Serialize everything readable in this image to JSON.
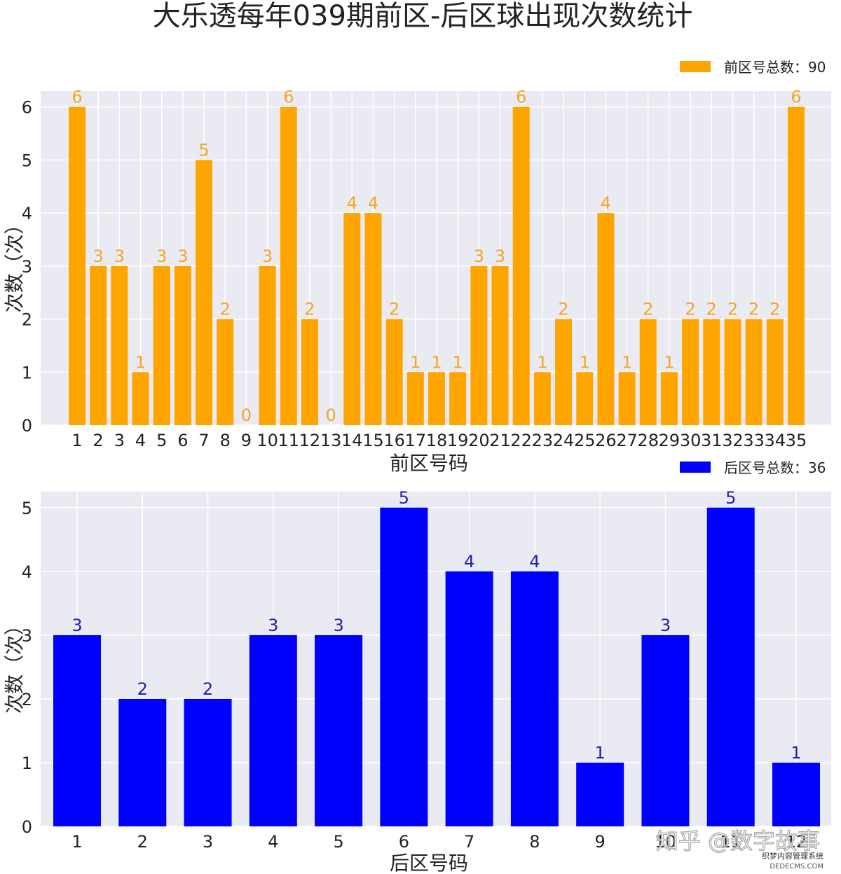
{
  "title": "大乐透每年039期前区-后区球出现次数统计",
  "watermark": {
    "zhihu_text": "知乎 @数字故事",
    "site_text": "织梦内容管理系统",
    "site_url": "DEDECMS.COM"
  },
  "chart_data": [
    {
      "type": "bar",
      "xlabel": "前区号码",
      "ylabel": "次数（次）",
      "legend_label": "前区号总数：90",
      "legend_position": "top-right",
      "color": "#FFA500",
      "label_color": "#F5A623",
      "grid": true,
      "ylim": [
        0,
        6.3
      ],
      "yticks": [
        "0",
        "1",
        "2",
        "3",
        "4",
        "5",
        "6"
      ],
      "categories": [
        "1",
        "2",
        "3",
        "4",
        "5",
        "6",
        "7",
        "8",
        "9",
        "10",
        "11",
        "12",
        "13",
        "14",
        "15",
        "16",
        "17",
        "18",
        "19",
        "20",
        "21",
        "22",
        "23",
        "24",
        "25",
        "26",
        "27",
        "28",
        "29",
        "30",
        "31",
        "32",
        "33",
        "34",
        "35"
      ],
      "values": [
        6,
        3,
        3,
        1,
        3,
        3,
        5,
        2,
        0,
        3,
        6,
        2,
        0,
        4,
        4,
        2,
        1,
        1,
        1,
        3,
        3,
        6,
        1,
        2,
        1,
        4,
        1,
        2,
        1,
        2,
        2,
        2,
        2,
        2,
        6
      ]
    },
    {
      "type": "bar",
      "xlabel": "后区号码",
      "ylabel": "次数（次）",
      "legend_label": "后区号总数：36",
      "legend_position": "top-right",
      "color": "#0000FF",
      "label_color": "#1F1FB3",
      "grid": true,
      "ylim": [
        0,
        5.25
      ],
      "yticks": [
        "0",
        "1",
        "2",
        "3",
        "4",
        "5"
      ],
      "categories": [
        "1",
        "2",
        "3",
        "4",
        "5",
        "6",
        "7",
        "8",
        "9",
        "10",
        "11",
        "12"
      ],
      "values": [
        3,
        2,
        2,
        3,
        3,
        5,
        4,
        4,
        1,
        3,
        5,
        1
      ]
    }
  ]
}
